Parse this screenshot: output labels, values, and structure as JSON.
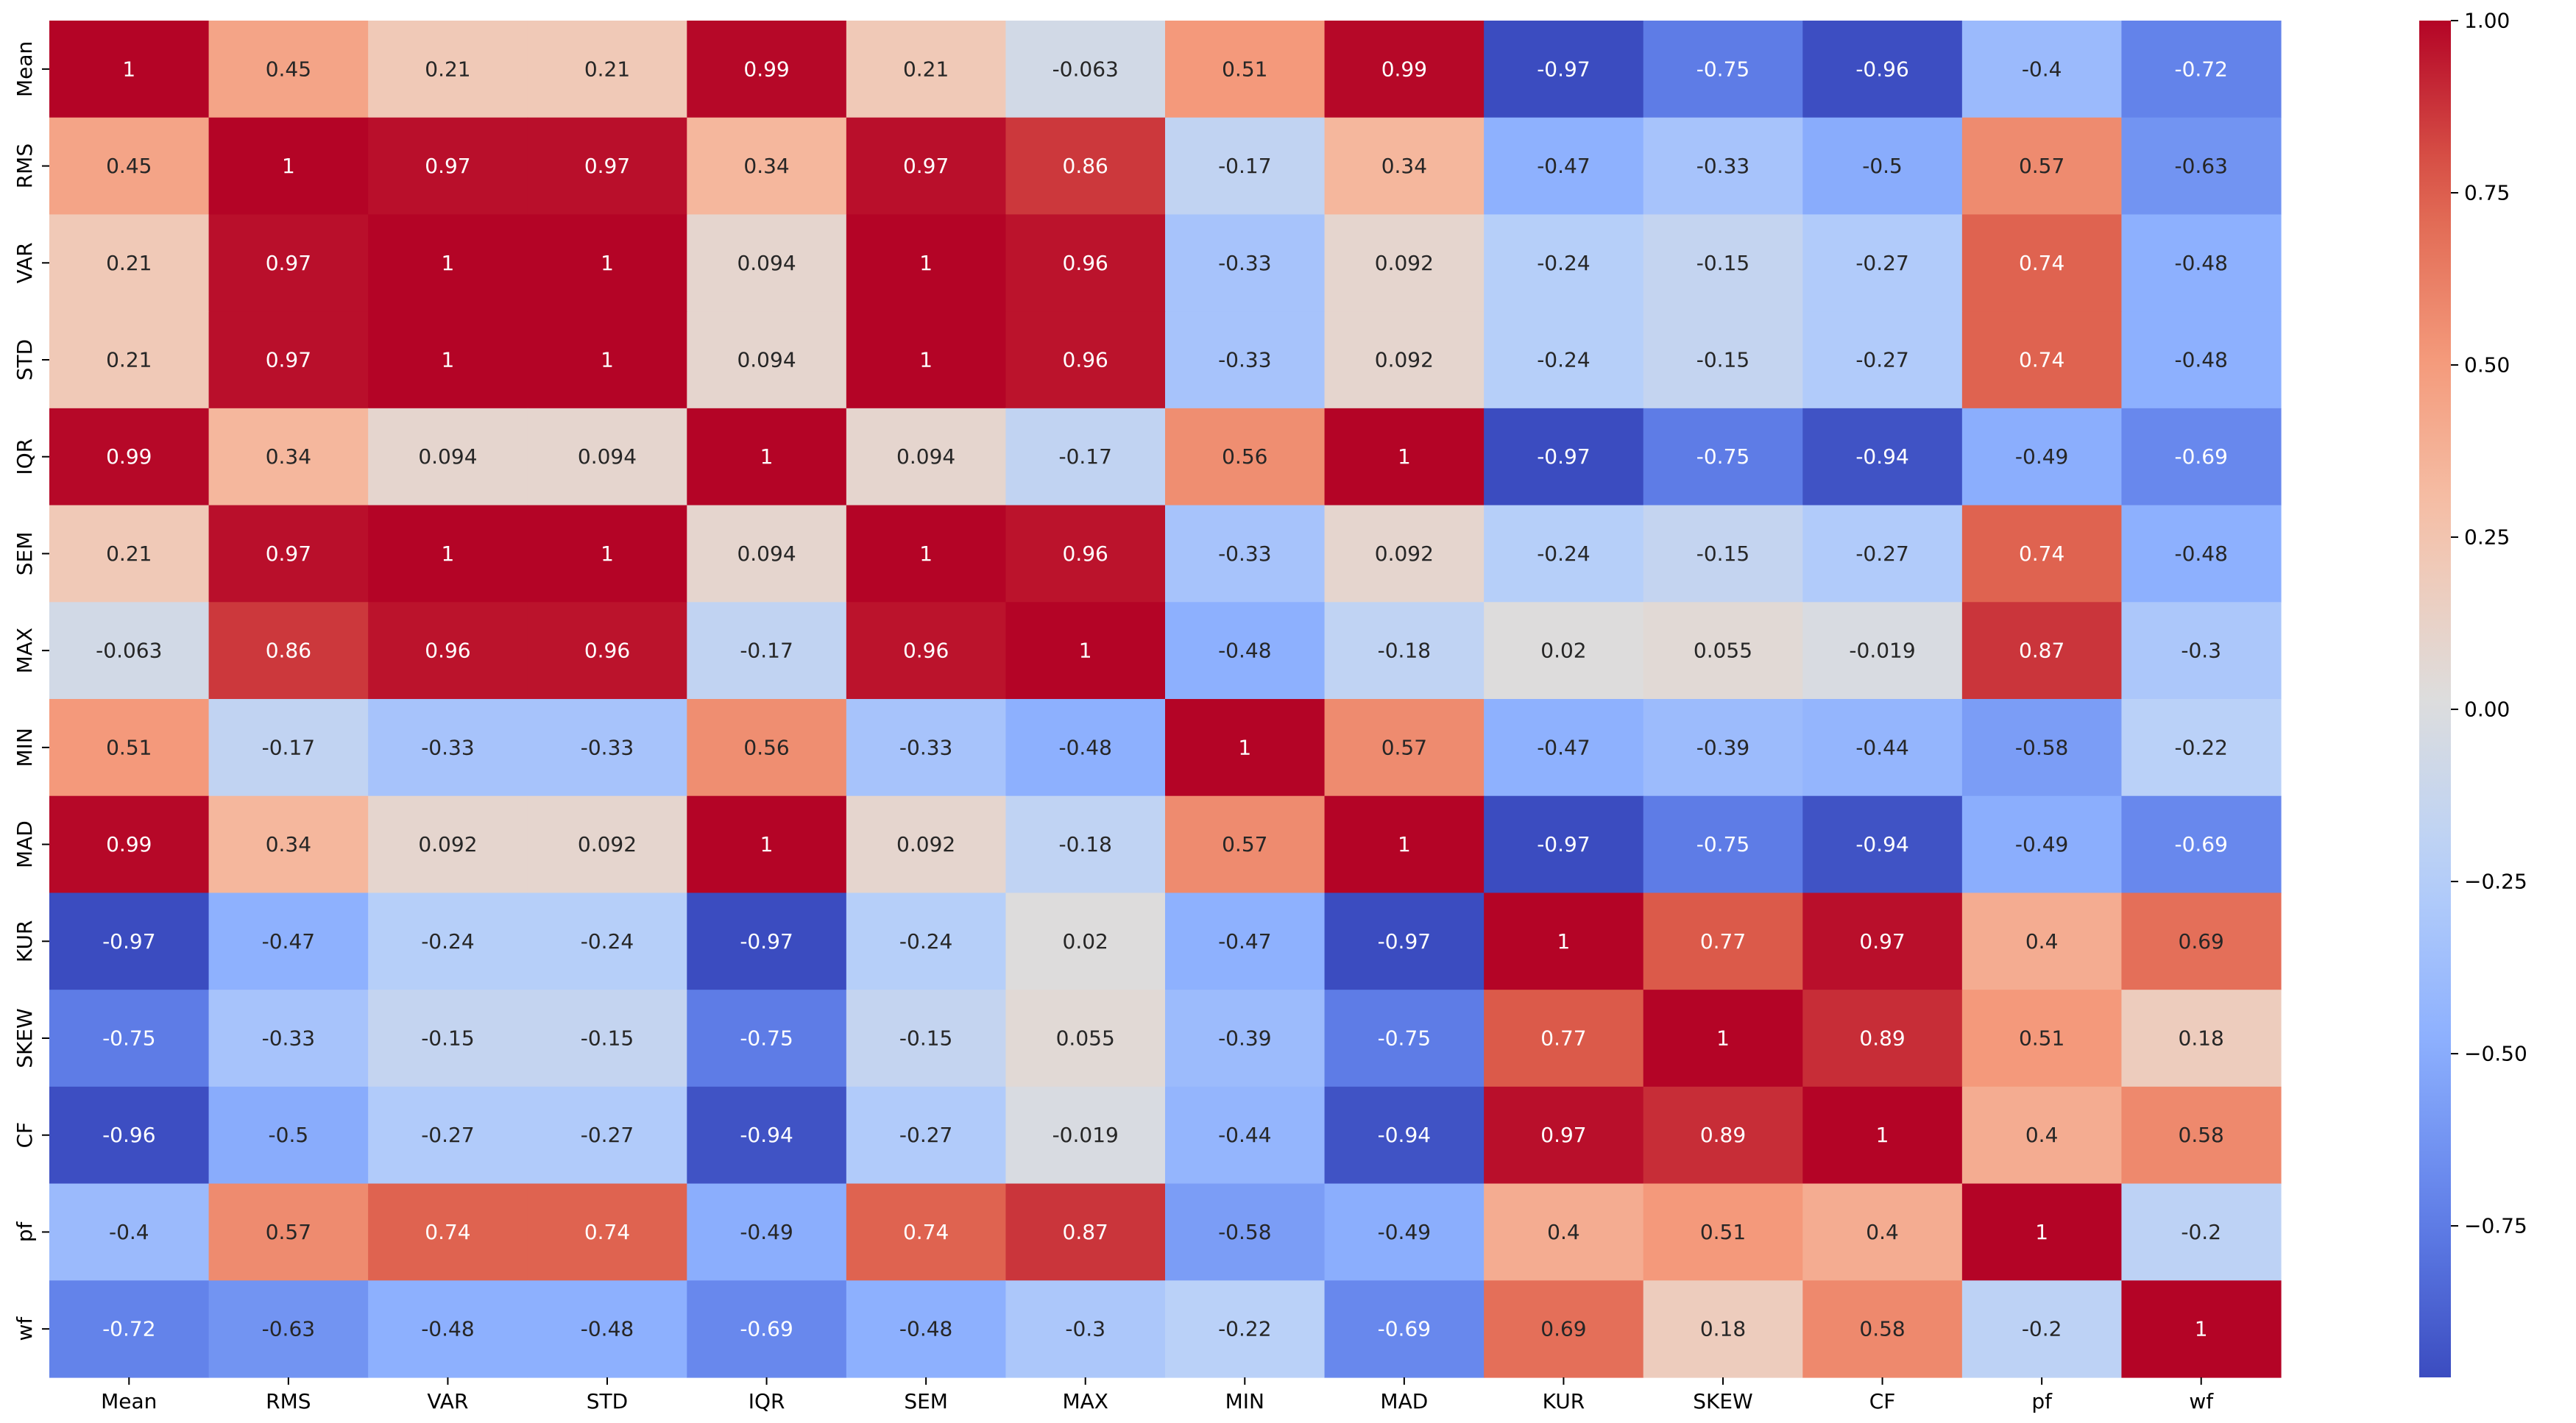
{
  "chart_data": {
    "type": "heatmap",
    "colormap": "coolwarm",
    "annotated": true,
    "row_labels": [
      "Mean",
      "RMS",
      "VAR",
      "STD",
      "IQR",
      "SEM",
      "MAX",
      "MIN",
      "MAD",
      "KUR",
      "SKEW",
      "CF",
      "pf",
      "wf"
    ],
    "col_labels": [
      "Mean",
      "RMS",
      "VAR",
      "STD",
      "IQR",
      "SEM",
      "MAX",
      "MIN",
      "MAD",
      "KUR",
      "SKEW",
      "CF",
      "pf",
      "wf"
    ],
    "matrix": [
      [
        "1",
        "0.45",
        "0.21",
        "0.21",
        "0.99",
        "0.21",
        "-0.063",
        "0.51",
        "0.99",
        "-0.97",
        "-0.75",
        "-0.96",
        "-0.4",
        "-0.72"
      ],
      [
        "0.45",
        "1",
        "0.97",
        "0.97",
        "0.34",
        "0.97",
        "0.86",
        "-0.17",
        "0.34",
        "-0.47",
        "-0.33",
        "-0.5",
        "0.57",
        "-0.63"
      ],
      [
        "0.21",
        "0.97",
        "1",
        "1",
        "0.094",
        "1",
        "0.96",
        "-0.33",
        "0.092",
        "-0.24",
        "-0.15",
        "-0.27",
        "0.74",
        "-0.48"
      ],
      [
        "0.21",
        "0.97",
        "1",
        "1",
        "0.094",
        "1",
        "0.96",
        "-0.33",
        "0.092",
        "-0.24",
        "-0.15",
        "-0.27",
        "0.74",
        "-0.48"
      ],
      [
        "0.99",
        "0.34",
        "0.094",
        "0.094",
        "1",
        "0.094",
        "-0.17",
        "0.56",
        "1",
        "-0.97",
        "-0.75",
        "-0.94",
        "-0.49",
        "-0.69"
      ],
      [
        "0.21",
        "0.97",
        "1",
        "1",
        "0.094",
        "1",
        "0.96",
        "-0.33",
        "0.092",
        "-0.24",
        "-0.15",
        "-0.27",
        "0.74",
        "-0.48"
      ],
      [
        "-0.063",
        "0.86",
        "0.96",
        "0.96",
        "-0.17",
        "0.96",
        "1",
        "-0.48",
        "-0.18",
        "0.02",
        "0.055",
        "-0.019",
        "0.87",
        "-0.3"
      ],
      [
        "0.51",
        "-0.17",
        "-0.33",
        "-0.33",
        "0.56",
        "-0.33",
        "-0.48",
        "1",
        "0.57",
        "-0.47",
        "-0.39",
        "-0.44",
        "-0.58",
        "-0.22"
      ],
      [
        "0.99",
        "0.34",
        "0.092",
        "0.092",
        "1",
        "0.092",
        "-0.18",
        "0.57",
        "1",
        "-0.97",
        "-0.75",
        "-0.94",
        "-0.49",
        "-0.69"
      ],
      [
        "-0.97",
        "-0.47",
        "-0.24",
        "-0.24",
        "-0.97",
        "-0.24",
        "0.02",
        "-0.47",
        "-0.97",
        "1",
        "0.77",
        "0.97",
        "0.4",
        "0.69"
      ],
      [
        "-0.75",
        "-0.33",
        "-0.15",
        "-0.15",
        "-0.75",
        "-0.15",
        "0.055",
        "-0.39",
        "-0.75",
        "0.77",
        "1",
        "0.89",
        "0.51",
        "0.18"
      ],
      [
        "-0.96",
        "-0.5",
        "-0.27",
        "-0.27",
        "-0.94",
        "-0.27",
        "-0.019",
        "-0.44",
        "-0.94",
        "0.97",
        "0.89",
        "1",
        "0.4",
        "0.58"
      ],
      [
        "-0.4",
        "0.57",
        "0.74",
        "0.74",
        "-0.49",
        "0.74",
        "0.87",
        "-0.58",
        "-0.49",
        "0.4",
        "0.51",
        "0.4",
        "1",
        "-0.2"
      ],
      [
        "-0.72",
        "-0.63",
        "-0.48",
        "-0.48",
        "-0.69",
        "-0.48",
        "-0.3",
        "-0.22",
        "-0.69",
        "0.69",
        "0.18",
        "0.58",
        "-0.2",
        "1"
      ]
    ],
    "colorbar": {
      "vmin": -0.97,
      "vmax": 1.0,
      "ticks": [
        1.0,
        0.75,
        0.5,
        0.25,
        0.0,
        -0.25,
        -0.5,
        -0.75
      ],
      "tick_labels": [
        "1.00",
        "0.75",
        "0.50",
        "0.25",
        "0.00",
        "−0.25",
        "−0.50",
        "−0.75"
      ]
    }
  }
}
